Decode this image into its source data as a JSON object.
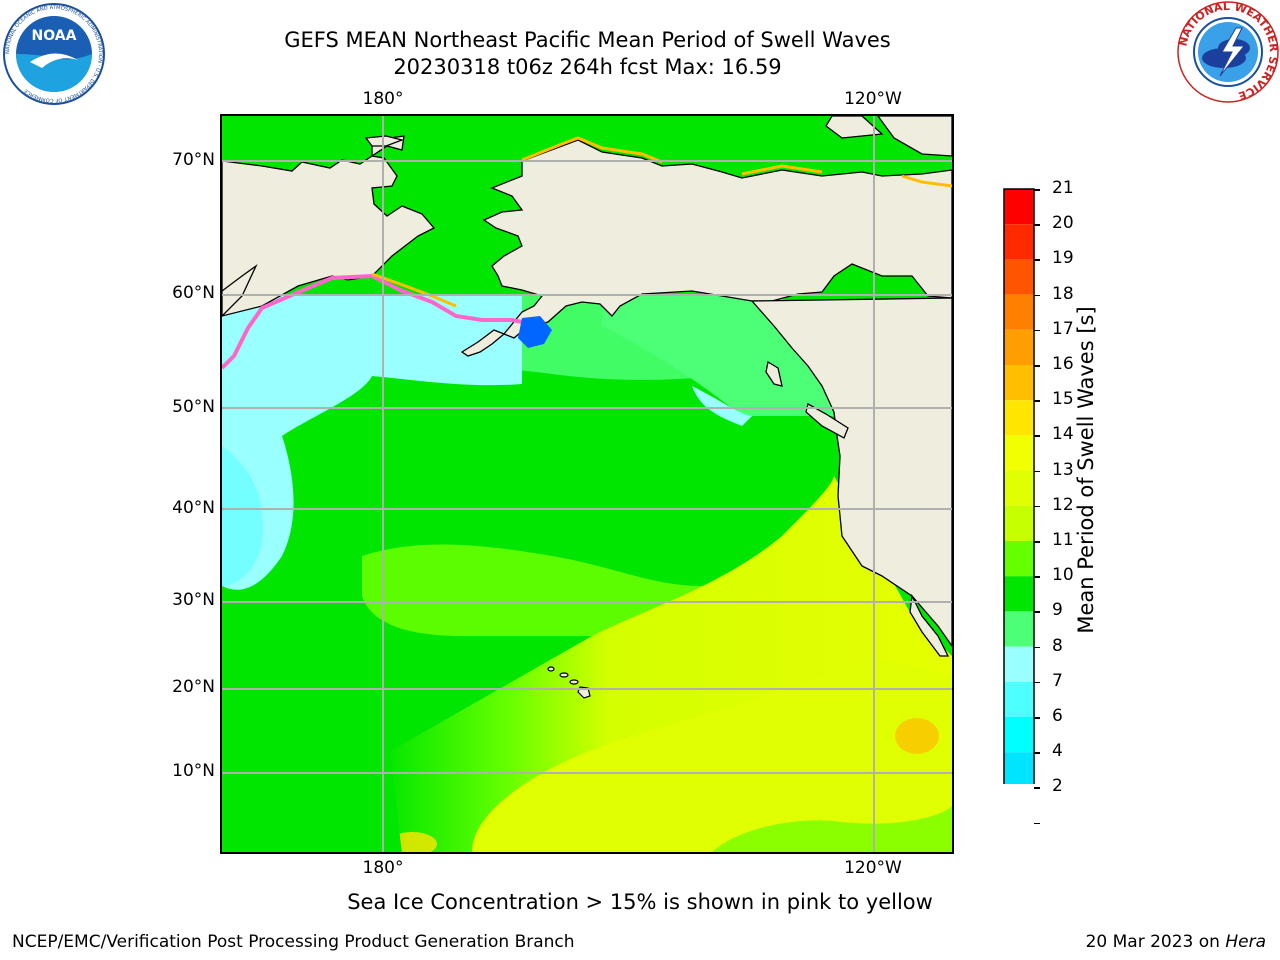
{
  "header": {
    "title_line1": "GEFS MEAN Northeast Pacific Mean Period of Swell Waves",
    "title_line2": "20230318 t06z 264h fcst   Max: 16.59"
  },
  "logos": {
    "left_icon": "noaa-logo",
    "left_text": "NOAA",
    "left_ring_text": "NATIONAL OCEANIC AND ATMOSPHERIC ADMINISTRATION · U.S. DEPARTMENT OF COMMERCE",
    "right_icon": "national-weather-service-logo",
    "right_ring_text": "NATIONAL WEATHER SERVICE"
  },
  "map": {
    "lon_labels_top": [
      "180°",
      "120°W"
    ],
    "lon_labels_bottom": [
      "180°",
      "120°W"
    ],
    "lat_labels": [
      "70°N",
      "60°N",
      "50°N",
      "40°N",
      "30°N",
      "20°N",
      "10°N"
    ],
    "colors": {
      "land": "#efedde",
      "grid": "#b0b0b0",
      "ice": "#ff66cc"
    }
  },
  "colorbar": {
    "label": "Mean Period of Swell Waves [s]",
    "ticks": [
      "21",
      "20",
      "19",
      "18",
      "17",
      "16",
      "15",
      "14",
      "13",
      "12",
      "11",
      "10",
      "9",
      "8",
      "7",
      "6",
      "4",
      "2"
    ],
    "colors_top_to_bottom": [
      "#ff0000",
      "#ff2a00",
      "#ff5500",
      "#ff8000",
      "#ff9e00",
      "#ffbf00",
      "#ffe600",
      "#f2ff00",
      "#e0ff00",
      "#c6ff00",
      "#66ff00",
      "#00e600",
      "#4dff77",
      "#99ffff",
      "#4dffff",
      "#00ffff",
      "#00e5ff",
      "#0066ff"
    ],
    "extend_color": "#0000ff"
  },
  "footer": {
    "caption": "Sea Ice Concentration > 15% is shown in pink to yellow",
    "credit": "NCEP/EMC/Verification Post Processing Product Generation Branch",
    "date_text": "20 Mar 2023 on ",
    "host": "Hera"
  }
}
